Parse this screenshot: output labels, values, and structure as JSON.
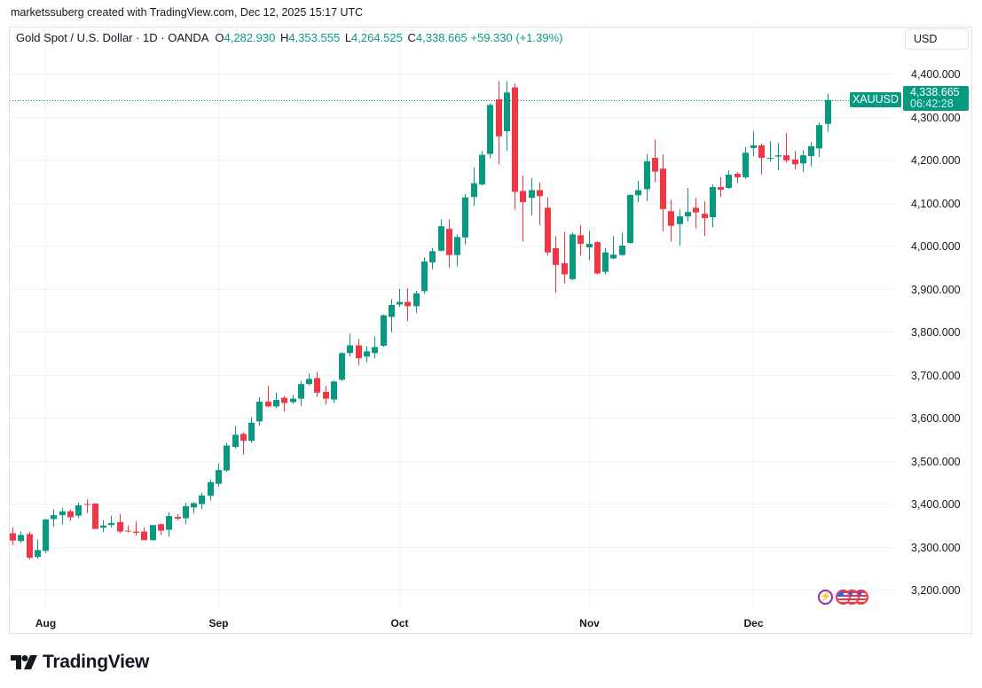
{
  "credit": "marketssuberg created with TradingView.com, Dec 12, 2025 15:17 UTC",
  "legend": {
    "title": "Gold Spot / U.S. Dollar · 1D · OANDA",
    "o_label": "O",
    "o": "4,282.930",
    "h_label": "H",
    "h": "4,353.555",
    "l_label": "L",
    "l": "4,264.525",
    "c_label": "C",
    "c": "4,338.665",
    "change": "+59.330 (+1.39%)"
  },
  "currency_button": "USD",
  "symbol_badge": "XAUUSD",
  "last_price": "4,338.665",
  "countdown": "06:42:28",
  "brand": "TradingView",
  "events_icons": [
    "lightning-icon",
    "us-flag-icon",
    "us-flag-icon",
    "us-flag-icon"
  ],
  "colors": {
    "up": "#089981",
    "down": "#F23645",
    "grid": "#F0F3FA",
    "event_purple": "#9C27B0"
  },
  "chart_data": {
    "type": "candlestick",
    "interval": "1D",
    "ylim": [
      3160,
      4460
    ],
    "price_line": 4338.665,
    "y_ticks": [
      3200,
      3300,
      3400,
      3500,
      3600,
      3700,
      3800,
      3900,
      4000,
      4100,
      4200,
      4300,
      4400
    ],
    "y_tick_labels": [
      "3,200.000",
      "3,300.000",
      "3,400.000",
      "3,500.000",
      "3,600.000",
      "3,700.000",
      "3,800.000",
      "3,900.000",
      "4,000.000",
      "4,100.000",
      "4,200.000",
      "4,300.000",
      "4,400.000"
    ],
    "x_ticks": [
      {
        "label": "Aug",
        "date": "2025-08-01"
      },
      {
        "label": "Sep",
        "date": "2025-09-01"
      },
      {
        "label": "Oct",
        "date": "2025-10-01"
      },
      {
        "label": "Nov",
        "date": "2025-11-03"
      },
      {
        "label": "Dec",
        "date": "2025-12-01"
      }
    ],
    "grid": true,
    "columns": [
      "date",
      "open",
      "high",
      "low",
      "close"
    ],
    "candles": [
      [
        "2025-07-28",
        3331,
        3345,
        3303,
        3314
      ],
      [
        "2025-07-29",
        3313,
        3335,
        3309,
        3327
      ],
      [
        "2025-07-30",
        3329,
        3335,
        3270,
        3274
      ],
      [
        "2025-07-31",
        3276,
        3316,
        3272,
        3292
      ],
      [
        "2025-08-01",
        3290,
        3365,
        3285,
        3363
      ],
      [
        "2025-08-04",
        3364,
        3386,
        3346,
        3373
      ],
      [
        "2025-08-05",
        3373,
        3390,
        3352,
        3382
      ],
      [
        "2025-08-06",
        3382,
        3386,
        3360,
        3368
      ],
      [
        "2025-08-07",
        3372,
        3402,
        3366,
        3396
      ],
      [
        "2025-08-08",
        3399,
        3410,
        3378,
        3397
      ],
      [
        "2025-08-11",
        3400,
        3401,
        3341,
        3341
      ],
      [
        "2025-08-12",
        3344,
        3361,
        3333,
        3349
      ],
      [
        "2025-08-13",
        3350,
        3372,
        3344,
        3355
      ],
      [
        "2025-08-14",
        3357,
        3376,
        3331,
        3335
      ],
      [
        "2025-08-15",
        3337,
        3349,
        3333,
        3335
      ],
      [
        "2025-08-18",
        3335,
        3359,
        3325,
        3332
      ],
      [
        "2025-08-19",
        3335,
        3345,
        3315,
        3315
      ],
      [
        "2025-08-20",
        3315,
        3350,
        3314,
        3350
      ],
      [
        "2025-08-21",
        3352,
        3354,
        3327,
        3337
      ],
      [
        "2025-08-22",
        3339,
        3380,
        3323,
        3371
      ],
      [
        "2025-08-25",
        3369,
        3376,
        3360,
        3365
      ],
      [
        "2025-08-26",
        3366,
        3402,
        3352,
        3394
      ],
      [
        "2025-08-27",
        3391,
        3403,
        3377,
        3401
      ],
      [
        "2025-08-28",
        3399,
        3425,
        3387,
        3419
      ],
      [
        "2025-08-29",
        3418,
        3456,
        3407,
        3450
      ],
      [
        "2025-09-01",
        3446,
        3493,
        3440,
        3478
      ],
      [
        "2025-09-02",
        3477,
        3541,
        3473,
        3535
      ],
      [
        "2025-09-03",
        3532,
        3580,
        3528,
        3560
      ],
      [
        "2025-09-04",
        3562,
        3566,
        3514,
        3546
      ],
      [
        "2025-09-05",
        3546,
        3601,
        3542,
        3588
      ],
      [
        "2025-09-08",
        3591,
        3648,
        3581,
        3637
      ],
      [
        "2025-09-09",
        3637,
        3674,
        3624,
        3626
      ],
      [
        "2025-09-10",
        3626,
        3658,
        3622,
        3641
      ],
      [
        "2025-09-11",
        3646,
        3650,
        3614,
        3634
      ],
      [
        "2025-09-12",
        3636,
        3653,
        3632,
        3644
      ],
      [
        "2025-09-15",
        3644,
        3686,
        3627,
        3678
      ],
      [
        "2025-09-16",
        3678,
        3703,
        3675,
        3690
      ],
      [
        "2025-09-17",
        3692,
        3707,
        3648,
        3658
      ],
      [
        "2025-09-18",
        3660,
        3674,
        3630,
        3644
      ],
      [
        "2025-09-19",
        3642,
        3686,
        3634,
        3684
      ],
      [
        "2025-09-22",
        3688,
        3752,
        3685,
        3750
      ],
      [
        "2025-09-23",
        3750,
        3795,
        3742,
        3768
      ],
      [
        "2025-09-24",
        3768,
        3783,
        3722,
        3738
      ],
      [
        "2025-09-25",
        3742,
        3766,
        3728,
        3754
      ],
      [
        "2025-09-26",
        3750,
        3789,
        3738,
        3764
      ],
      [
        "2025-09-29",
        3767,
        3840,
        3765,
        3838
      ],
      [
        "2025-09-30",
        3834,
        3875,
        3798,
        3862
      ],
      [
        "2025-10-01",
        3863,
        3899,
        3857,
        3869
      ],
      [
        "2025-10-02",
        3869,
        3901,
        3824,
        3859
      ],
      [
        "2025-10-03",
        3859,
        3895,
        3843,
        3889
      ],
      [
        "2025-10-06",
        3894,
        3973,
        3888,
        3963
      ],
      [
        "2025-10-07",
        3961,
        3994,
        3945,
        3987
      ],
      [
        "2025-10-08",
        3988,
        4061,
        3986,
        4045
      ],
      [
        "2025-10-09",
        4039,
        4061,
        3949,
        3978
      ],
      [
        "2025-10-10",
        3978,
        4026,
        3951,
        4020
      ],
      [
        "2025-10-13",
        4019,
        4120,
        4002,
        4112
      ],
      [
        "2025-10-14",
        4113,
        4182,
        4092,
        4145
      ],
      [
        "2025-10-15",
        4142,
        4220,
        4140,
        4211
      ],
      [
        "2025-10-16",
        4213,
        4331,
        4203,
        4327
      ],
      [
        "2025-10-17",
        4340,
        4383,
        4189,
        4254
      ],
      [
        "2025-10-20",
        4266,
        4383,
        4222,
        4356
      ],
      [
        "2025-10-21",
        4368,
        4376,
        4084,
        4125
      ],
      [
        "2025-10-22",
        4127,
        4163,
        4009,
        4101
      ],
      [
        "2025-10-23",
        4111,
        4157,
        4070,
        4129
      ],
      [
        "2025-10-24",
        4129,
        4147,
        4048,
        4115
      ],
      [
        "2025-10-27",
        4088,
        4112,
        3976,
        3984
      ],
      [
        "2025-10-28",
        3994,
        4022,
        3890,
        3955
      ],
      [
        "2025-10-29",
        3959,
        4032,
        3912,
        3933
      ],
      [
        "2025-10-30",
        3922,
        4030,
        3919,
        4026
      ],
      [
        "2025-10-31",
        4024,
        4048,
        3976,
        4004
      ],
      [
        "2025-11-03",
        3996,
        4034,
        3966,
        4004
      ],
      [
        "2025-11-04",
        4008,
        4010,
        3933,
        3935
      ],
      [
        "2025-11-05",
        3939,
        3994,
        3933,
        3984
      ],
      [
        "2025-11-06",
        3970,
        4022,
        3968,
        3979
      ],
      [
        "2025-11-07",
        3978,
        4030,
        3976,
        4000
      ],
      [
        "2025-11-10",
        4006,
        4118,
        4005,
        4118
      ],
      [
        "2025-11-11",
        4117,
        4151,
        4101,
        4129
      ],
      [
        "2025-11-12",
        4131,
        4213,
        4103,
        4196
      ],
      [
        "2025-11-13",
        4204,
        4247,
        4148,
        4172
      ],
      [
        "2025-11-14",
        4179,
        4212,
        4033,
        4085
      ],
      [
        "2025-11-17",
        4080,
        4107,
        4009,
        4046
      ],
      [
        "2025-11-18",
        4050,
        4084,
        4000,
        4068
      ],
      [
        "2025-11-19",
        4068,
        4134,
        4056,
        4078
      ],
      [
        "2025-11-20",
        4088,
        4111,
        4040,
        4077
      ],
      [
        "2025-11-21",
        4074,
        4103,
        4023,
        4064
      ],
      [
        "2025-11-24",
        4066,
        4142,
        4042,
        4136
      ],
      [
        "2025-11-25",
        4136,
        4160,
        4112,
        4130
      ],
      [
        "2025-11-26",
        4134,
        4175,
        4132,
        4165
      ],
      [
        "2025-11-27",
        4167,
        4171,
        4145,
        4159
      ],
      [
        "2025-11-28",
        4159,
        4229,
        4155,
        4216
      ],
      [
        "2025-12-01",
        4227,
        4266,
        4208,
        4233
      ],
      [
        "2025-12-02",
        4233,
        4237,
        4165,
        4204
      ],
      [
        "2025-12-03",
        4202,
        4243,
        4196,
        4204
      ],
      [
        "2025-12-04",
        4207,
        4239,
        4175,
        4210
      ],
      [
        "2025-12-05",
        4210,
        4262,
        4193,
        4198
      ],
      [
        "2025-12-08",
        4200,
        4220,
        4177,
        4189
      ],
      [
        "2025-12-09",
        4191,
        4222,
        4171,
        4210
      ],
      [
        "2025-12-10",
        4208,
        4241,
        4183,
        4231
      ],
      [
        "2025-12-11",
        4226,
        4286,
        4206,
        4280
      ],
      [
        "2025-12-12",
        4282.93,
        4353.555,
        4264.525,
        4338.665
      ]
    ]
  }
}
